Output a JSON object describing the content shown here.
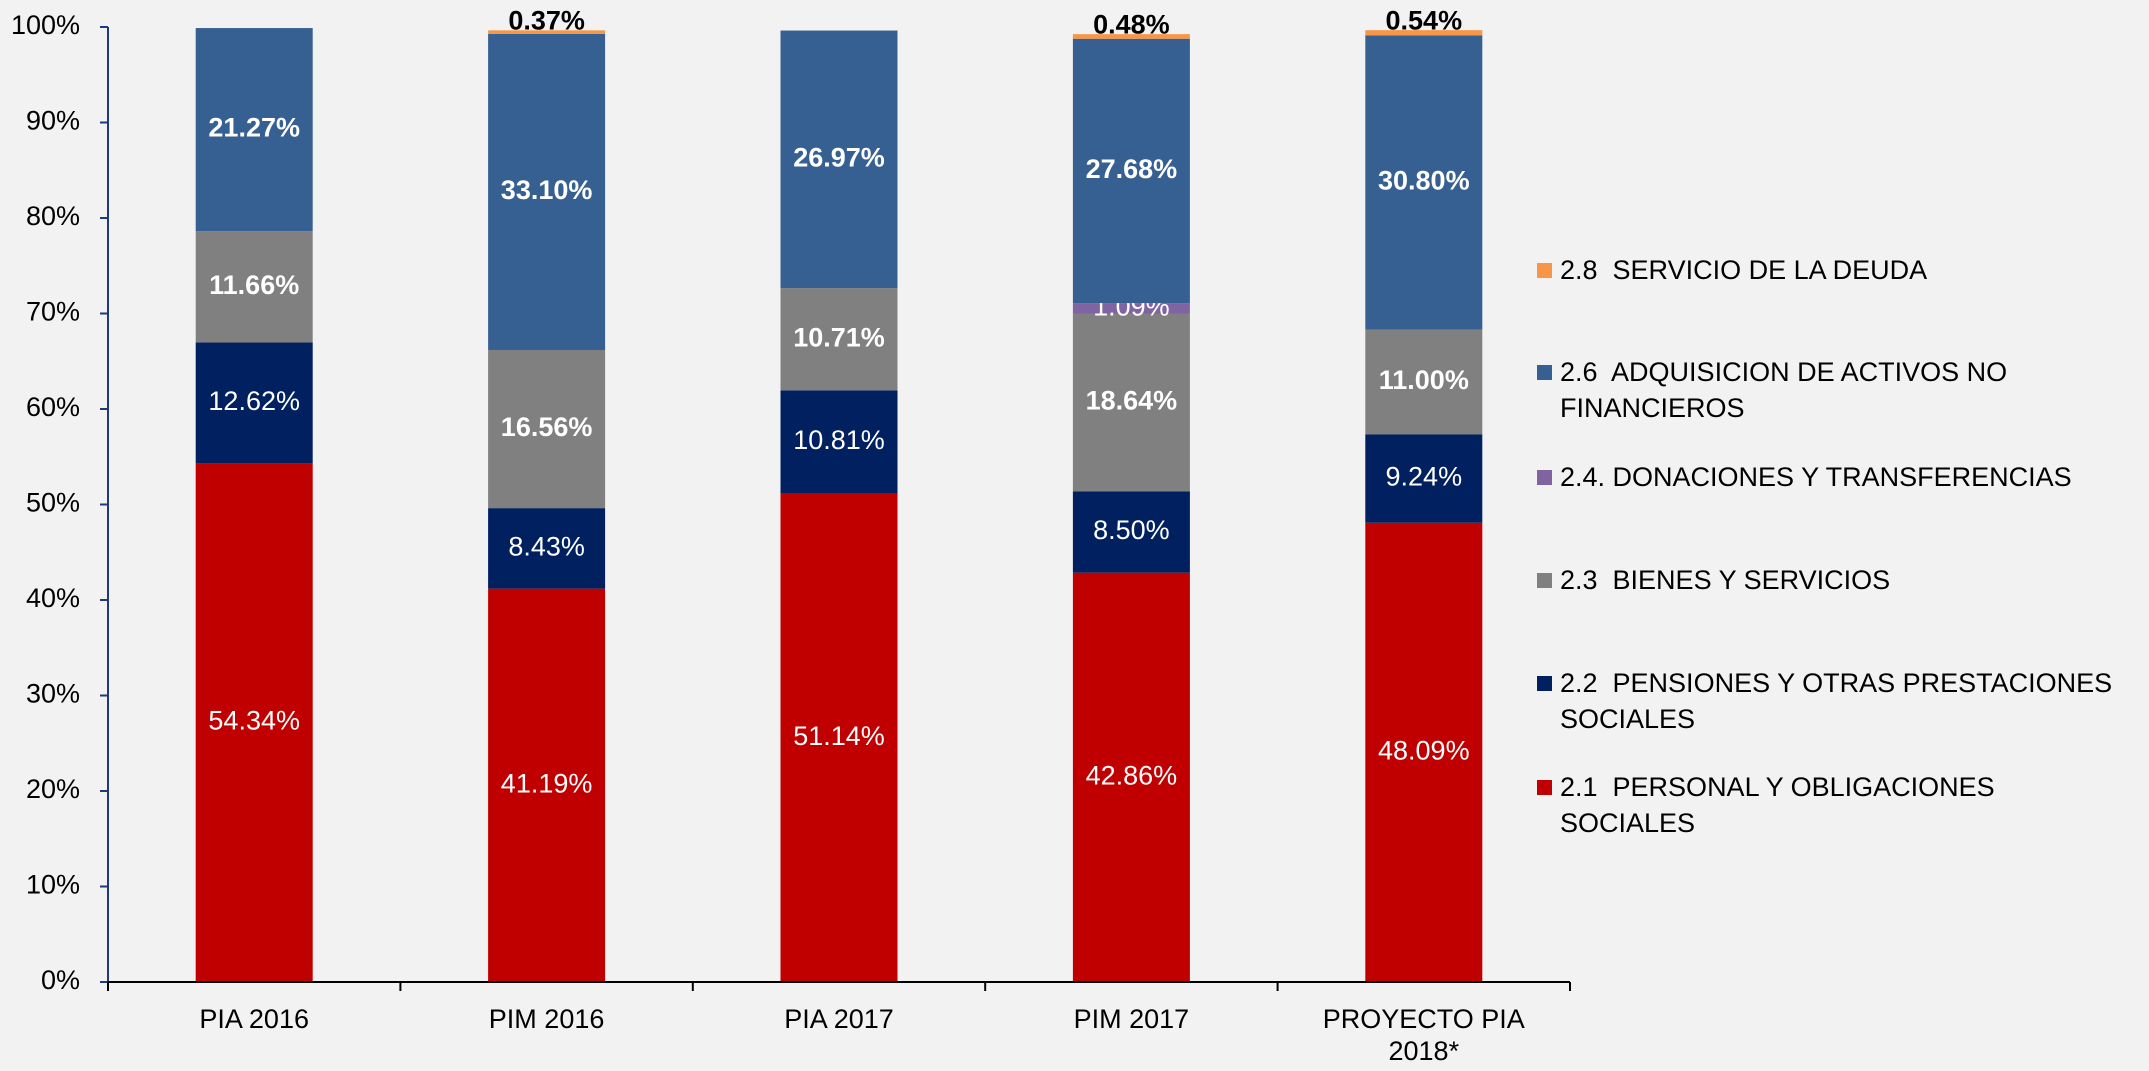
{
  "chart_data": {
    "type": "stacked_bar",
    "categories": [
      "PIA 2016",
      "PIM 2016",
      "PIA  2017",
      "PIM  2017",
      "PROYECTO PIA 2018*"
    ],
    "series": [
      {
        "name": "2.1  PERSONAL Y OBLIGACIONES SOCIALES",
        "color": "#c00000",
        "values": [
          54.34,
          41.19,
          51.14,
          42.86,
          48.09
        ],
        "value_labels": [
          "54.34%",
          "41.19%",
          "51.14%",
          "42.86%",
          "48.09%"
        ]
      },
      {
        "name": "2.2  PENSIONES Y OTRAS PRESTACIONES SOCIALES",
        "color": "#002060",
        "values": [
          12.62,
          8.43,
          10.81,
          8.5,
          9.24
        ],
        "value_labels": [
          "12.62%",
          "8.43%",
          "10.81%",
          "8.50%",
          "9.24%"
        ]
      },
      {
        "name": "2.3  BIENES Y SERVICIOS",
        "color": "#808080",
        "values": [
          11.66,
          16.56,
          10.71,
          18.64,
          11.0
        ],
        "value_labels": [
          "11.66%",
          "16.56%",
          "10.71%",
          "18.64%",
          "11.00%"
        ]
      },
      {
        "name": "2.4. DONACIONES Y TRANSFERENCIAS",
        "color": "#8064a2",
        "values": [
          null,
          null,
          null,
          1.09,
          null
        ],
        "value_labels": [
          null,
          null,
          null,
          "1.09%",
          null
        ]
      },
      {
        "name": "2.6  ADQUISICION DE ACTIVOS NO FINANCIEROS",
        "color": "#376092",
        "values": [
          21.27,
          33.1,
          26.97,
          27.68,
          30.8
        ],
        "value_labels": [
          "21.27%",
          "33.10%",
          "26.97%",
          "27.68%",
          "30.80%"
        ]
      },
      {
        "name": "2.8  SERVICIO DE LA DEUDA",
        "color": "#f79646",
        "values": [
          null,
          0.37,
          null,
          0.48,
          0.54
        ],
        "value_labels": [
          null,
          "0.37%",
          null,
          "0.48%",
          "0.54%"
        ]
      }
    ],
    "ylim": [
      0,
      100
    ],
    "yticks": [
      {
        "value": 0,
        "label": "0%"
      },
      {
        "value": 10,
        "label": "10%"
      },
      {
        "value": 20,
        "label": "20%"
      },
      {
        "value": 30,
        "label": "30%"
      },
      {
        "value": 40,
        "label": "40%"
      },
      {
        "value": 50,
        "label": "50%"
      },
      {
        "value": 60,
        "label": "60%"
      },
      {
        "value": 70,
        "label": "70%"
      },
      {
        "value": 80,
        "label": "80%"
      },
      {
        "value": 90,
        "label": "90%"
      },
      {
        "value": 100,
        "label": "100%"
      }
    ],
    "legend": "right"
  }
}
